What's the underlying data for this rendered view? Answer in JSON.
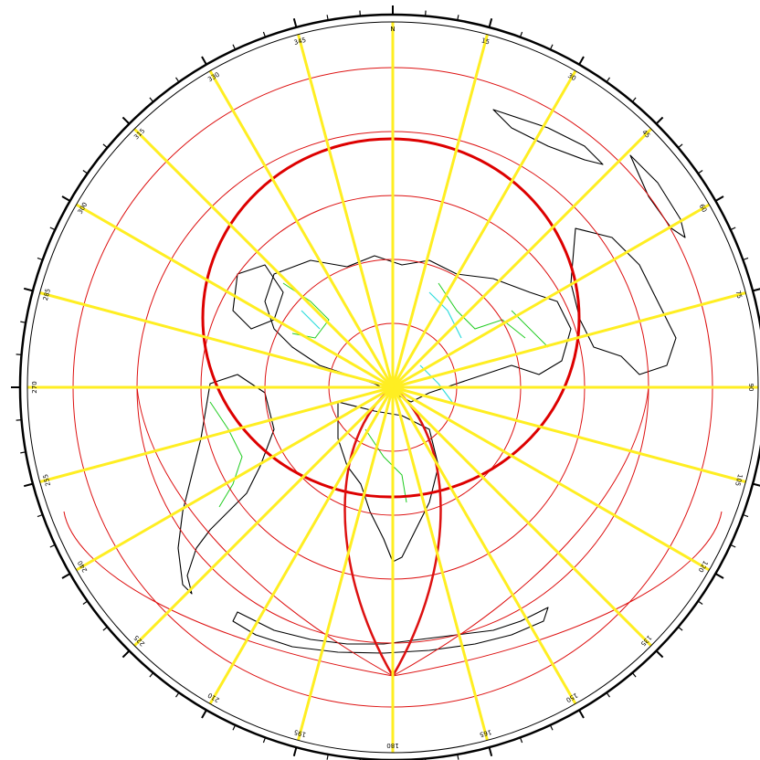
{
  "map": {
    "projection": "azimuthal equidistant",
    "colors": {
      "background": "#ffffff",
      "bearing_lines": "#ffee22",
      "distance_circles": "#dd1111",
      "highlight_circle": "#dd0000",
      "coastlines": "#000000",
      "borders": "#22cc22",
      "rivers": "#33dddd",
      "frame": "#000000"
    },
    "bearing_step_degrees": 15,
    "tick_step_degrees": 5,
    "bearing_labels": [
      {
        "deg": 0,
        "text": "N"
      },
      {
        "deg": 15,
        "text": "15"
      },
      {
        "deg": 30,
        "text": "30"
      },
      {
        "deg": 45,
        "text": "45"
      },
      {
        "deg": 60,
        "text": "60"
      },
      {
        "deg": 75,
        "text": "75"
      },
      {
        "deg": 90,
        "text": "90"
      },
      {
        "deg": 105,
        "text": "105"
      },
      {
        "deg": 120,
        "text": "120"
      },
      {
        "deg": 135,
        "text": "135"
      },
      {
        "deg": 150,
        "text": "150"
      },
      {
        "deg": 165,
        "text": "165"
      },
      {
        "deg": 180,
        "text": "180"
      },
      {
        "deg": 195,
        "text": "195"
      },
      {
        "deg": 210,
        "text": "210"
      },
      {
        "deg": 225,
        "text": "225"
      },
      {
        "deg": 240,
        "text": "240"
      },
      {
        "deg": 255,
        "text": "255"
      },
      {
        "deg": 270,
        "text": "270"
      },
      {
        "deg": 285,
        "text": "285"
      },
      {
        "deg": 300,
        "text": "300"
      },
      {
        "deg": 315,
        "text": "315"
      },
      {
        "deg": 330,
        "text": "330"
      },
      {
        "deg": 345,
        "text": "345"
      }
    ]
  }
}
